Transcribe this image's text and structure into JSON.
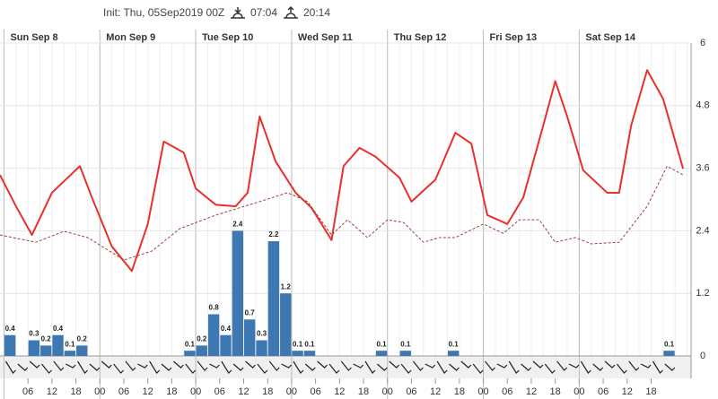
{
  "chart_data": {
    "type": "meteogram",
    "init": "Init: Thu, 05Sep2019 00Z",
    "sunrise": "07:04",
    "sunset": "20:14",
    "days": [
      "Sun Sep 8",
      "Mon Sep 9",
      "Tue Sep 10",
      "Wed Sep 11",
      "Thu Sep 12",
      "Fri Sep 13",
      "Sat Sep 14"
    ],
    "xlim": [
      -1,
      172
    ],
    "xticks": [
      {
        "value": 6,
        "label": "06"
      },
      12,
      18,
      {
        "value": 24,
        "label": "00"
      },
      {
        "value": 30,
        "label": "06"
      },
      {
        "value": 36,
        "label": "12"
      },
      {
        "value": 42,
        "label": "18"
      },
      {
        "value": 48,
        "label": "00"
      },
      {
        "value": 54,
        "label": "06"
      },
      {
        "value": 60,
        "label": "12"
      },
      {
        "value": 66,
        "label": "18"
      },
      {
        "value": 72,
        "label": "00"
      },
      {
        "value": 78,
        "label": "06"
      },
      {
        "value": 84,
        "label": "12"
      },
      {
        "value": 90,
        "label": "18"
      },
      {
        "value": 96,
        "label": "00"
      },
      {
        "value": 102,
        "label": "06"
      },
      {
        "value": 108,
        "label": "12"
      },
      {
        "value": 114,
        "label": "18"
      },
      {
        "value": 120,
        "label": "00"
      },
      {
        "value": 126,
        "label": "06"
      },
      {
        "value": 132,
        "label": "12"
      },
      {
        "value": 138,
        "label": "18"
      },
      {
        "value": 144,
        "label": "00"
      },
      {
        "value": 150,
        "label": "06"
      },
      {
        "value": 156,
        "label": "12"
      },
      {
        "value": 162,
        "label": "18"
      }
    ],
    "ylim": [
      0,
      6
    ],
    "yticks": [
      0,
      1.2,
      2.4,
      3.6,
      4.8,
      6
    ],
    "grid": true,
    "precip": {
      "color": "#3d78b2",
      "x": [
        0,
        6,
        9,
        12,
        15,
        18,
        45,
        48,
        51,
        54,
        57,
        60,
        63,
        66,
        69,
        72,
        75,
        93,
        99,
        111,
        165
      ],
      "values": [
        0.4,
        0.3,
        0.2,
        0.4,
        0.1,
        0.2,
        0.1,
        0.2,
        0.8,
        0.4,
        2.4,
        0.7,
        0.3,
        2.2,
        1.2,
        0.1,
        0.1,
        0.1,
        0.1,
        0.1,
        0.1
      ]
    },
    "series": [
      {
        "color": "#e8302c",
        "x": [
          -1,
          3,
          7,
          12,
          19,
          22,
          27,
          32,
          36,
          40,
          45,
          48,
          53,
          58,
          61,
          64,
          68,
          73,
          77,
          82,
          85,
          89,
          93,
          99,
          102,
          108,
          113,
          117,
          121,
          126,
          130,
          135,
          138,
          141,
          145,
          151,
          154,
          157,
          161,
          165,
          170
        ],
        "values": [
          3.47,
          2.87,
          2.32,
          3.13,
          3.64,
          3.04,
          2.1,
          1.63,
          2.53,
          4.11,
          3.9,
          3.21,
          2.9,
          2.87,
          3.13,
          4.59,
          3.73,
          3.13,
          2.84,
          2.22,
          3.64,
          3.99,
          3.82,
          3.42,
          2.96,
          3.38,
          4.28,
          4.07,
          2.7,
          2.53,
          3.04,
          4.42,
          5.27,
          4.59,
          3.56,
          3.13,
          3.13,
          4.42,
          5.48,
          4.93,
          3.59
        ]
      },
      {
        "color": "#a0403c",
        "dash": true,
        "x": [
          -1,
          8,
          15,
          21,
          30,
          37,
          44,
          53,
          64,
          71,
          76,
          82,
          86,
          91,
          96,
          100,
          105,
          109,
          113,
          120,
          125,
          129,
          134,
          138,
          143,
          147,
          154,
          161,
          166,
          170
        ],
        "values": [
          2.32,
          2.18,
          2.39,
          2.27,
          1.84,
          2.01,
          2.44,
          2.7,
          2.96,
          3.13,
          2.96,
          2.32,
          2.61,
          2.27,
          2.61,
          2.56,
          2.18,
          2.27,
          2.27,
          2.53,
          2.35,
          2.61,
          2.61,
          2.18,
          2.27,
          2.15,
          2.18,
          2.87,
          3.64,
          3.47
        ]
      }
    ]
  }
}
